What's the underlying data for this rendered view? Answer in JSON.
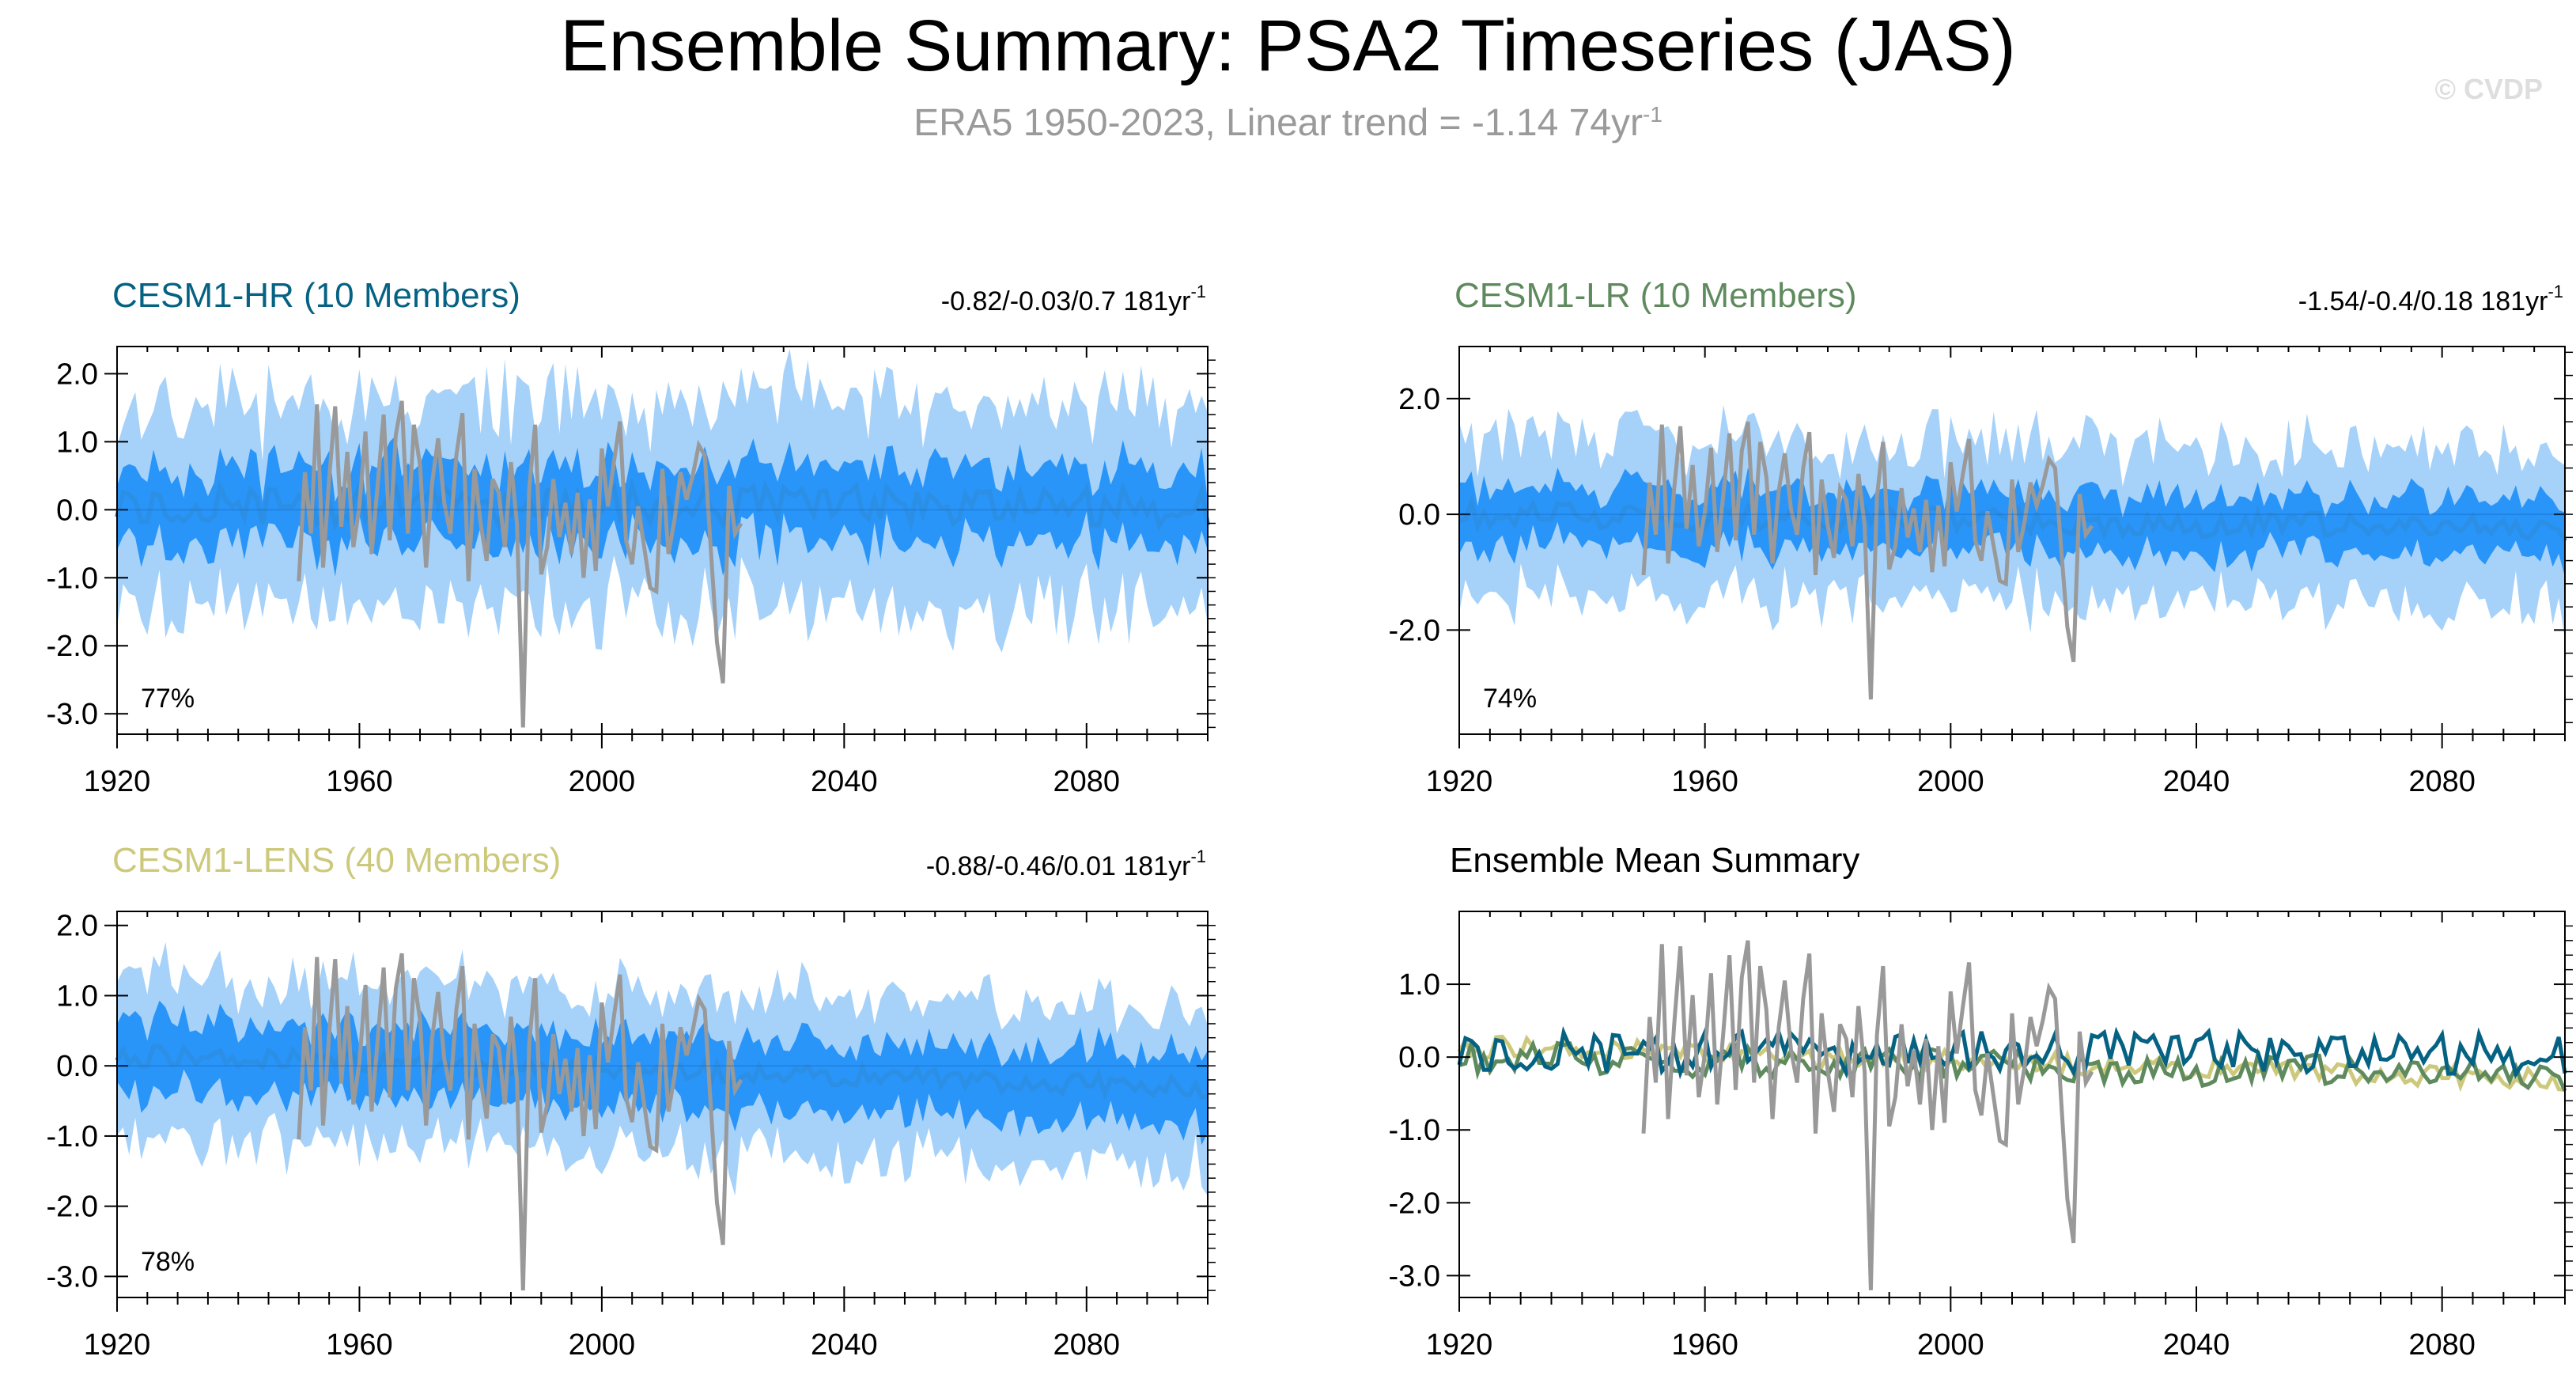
{
  "title": "Ensemble Summary: PSA2 Timeseries (JAS)",
  "subtitle_main": "ERA5 1950-2023, Linear trend = -1.14 74yr",
  "subtitle_sup": "-1",
  "watermark": "© CVDP",
  "colors": {
    "hr": "#056283",
    "lr": "#5e8a5e",
    "lens": "#cdc97c",
    "obs": "#999999",
    "mean_line": "#2c8fe6",
    "band_inner": "#2a95f8",
    "band_outer": "#a6d2fa",
    "text": "#000000"
  },
  "chart_data": [
    {
      "type": "line",
      "id": "hr",
      "title": "CESM1-HR (10 Members)",
      "trend_text": "-0.82/-0.03/0.7 181yr",
      "trend_sup": "-1",
      "percent_label": "77%",
      "xlim": [
        1920,
        2100
      ],
      "ylim": [
        -3.3,
        2.4
      ],
      "xticks": [
        1920,
        1960,
        2000,
        2040,
        2080
      ],
      "xtick_labels": [
        "1920",
        "1960",
        "2000",
        "2040",
        "2080"
      ],
      "yticks": [
        2.0,
        1.0,
        0.0,
        -1.0,
        -2.0,
        -3.0
      ],
      "ytick_labels": [
        "2.0",
        "1.0",
        "0.0",
        "-1.0",
        "-2.0",
        "-3.0"
      ],
      "series": [
        {
          "name": "ensemble mean",
          "style": "mean"
        },
        {
          "name": "25-75% spread",
          "style": "band-inner"
        },
        {
          "name": "min-max spread",
          "style": "band-outer"
        },
        {
          "name": "ERA5",
          "style": "obs"
        }
      ]
    },
    {
      "type": "line",
      "id": "lr",
      "title": "CESM1-LR (10 Members)",
      "trend_text": "-1.54/-0.4/0.18 181yr",
      "trend_sup": "-1",
      "percent_label": "74%",
      "xlim": [
        1920,
        2100
      ],
      "ylim": [
        -3.8,
        2.9
      ],
      "xticks": [
        1920,
        1960,
        2000,
        2040,
        2080
      ],
      "xtick_labels": [
        "1920",
        "1960",
        "2000",
        "2040",
        "2080"
      ],
      "yticks": [
        2.0,
        0.0,
        -2.0
      ],
      "ytick_labels": [
        "2.0",
        "0.0",
        "-2.0"
      ],
      "series": [
        {
          "name": "ensemble mean",
          "style": "mean"
        },
        {
          "name": "25-75% spread",
          "style": "band-inner"
        },
        {
          "name": "min-max spread",
          "style": "band-outer"
        },
        {
          "name": "ERA5",
          "style": "obs"
        }
      ]
    },
    {
      "type": "line",
      "id": "lens",
      "title": "CESM1-LENS (40 Members)",
      "trend_text": "-0.88/-0.46/0.01 181yr",
      "trend_sup": "-1",
      "percent_label": "78%",
      "xlim": [
        1920,
        2100
      ],
      "ylim": [
        -3.3,
        2.2
      ],
      "xticks": [
        1920,
        1960,
        2000,
        2040,
        2080
      ],
      "xtick_labels": [
        "1920",
        "1960",
        "2000",
        "2040",
        "2080"
      ],
      "yticks": [
        2.0,
        1.0,
        0.0,
        -1.0,
        -2.0,
        -3.0
      ],
      "ytick_labels": [
        "2.0",
        "1.0",
        "0.0",
        "-1.0",
        "-2.0",
        "-3.0"
      ],
      "series": [
        {
          "name": "ensemble mean",
          "style": "mean"
        },
        {
          "name": "25-75% spread",
          "style": "band-inner"
        },
        {
          "name": "min-max spread",
          "style": "band-outer"
        },
        {
          "name": "ERA5",
          "style": "obs"
        }
      ]
    },
    {
      "type": "line",
      "id": "summary",
      "title": "Ensemble Mean Summary",
      "trend_text": "",
      "trend_sup": "",
      "percent_label": "",
      "xlim": [
        1920,
        2100
      ],
      "ylim": [
        -3.3,
        2.0
      ],
      "xticks": [
        1920,
        1960,
        2000,
        2040,
        2080
      ],
      "xtick_labels": [
        "1920",
        "1960",
        "2000",
        "2040",
        "2080"
      ],
      "yticks": [
        1.0,
        0.0,
        -1.0,
        -2.0,
        -3.0
      ],
      "ytick_labels": [
        "1.0",
        "0.0",
        "-1.0",
        "-2.0",
        "-3.0"
      ],
      "series": [
        {
          "name": "ERA5",
          "style": "obs"
        },
        {
          "name": "CESM1-HR",
          "style": "hr"
        },
        {
          "name": "CESM1-LR",
          "style": "lr"
        },
        {
          "name": "CESM1-LENS",
          "style": "lens"
        }
      ]
    }
  ],
  "obs_series": {
    "name": "ERA5",
    "start_year": 1950,
    "values": [
      -1.05,
      0.55,
      -0.35,
      1.55,
      -0.85,
      0.45,
      1.52,
      -0.25,
      0.85,
      -0.55,
      0.05,
      1.15,
      -0.65,
      0.35,
      1.4,
      -0.45,
      1.1,
      1.6,
      -0.35,
      1.25,
      0.65,
      -0.85,
      0.4,
      1.05,
      0.1,
      -0.35,
      0.8,
      1.42,
      -1.05,
      0.6,
      -0.2,
      -0.75,
      0.45,
      0.25,
      -0.55,
      0.7,
      -0.2,
      -3.2,
      0.3,
      1.25,
      -0.95,
      -0.55,
      0.45,
      -0.4,
      0.1,
      -0.65,
      0.25,
      -1.0,
      0.15,
      -0.9,
      0.9,
      0.05,
      0.7,
      1.3,
      -0.45,
      -0.8,
      0.05,
      -0.55,
      -1.15,
      -1.2,
      0.6,
      -0.65,
      -0.15,
      0.55,
      0.15,
      0.5,
      0.95,
      0.8,
      -0.6,
      -1.95,
      -2.55,
      0.35,
      -0.35,
      -0.2
    ]
  }
}
